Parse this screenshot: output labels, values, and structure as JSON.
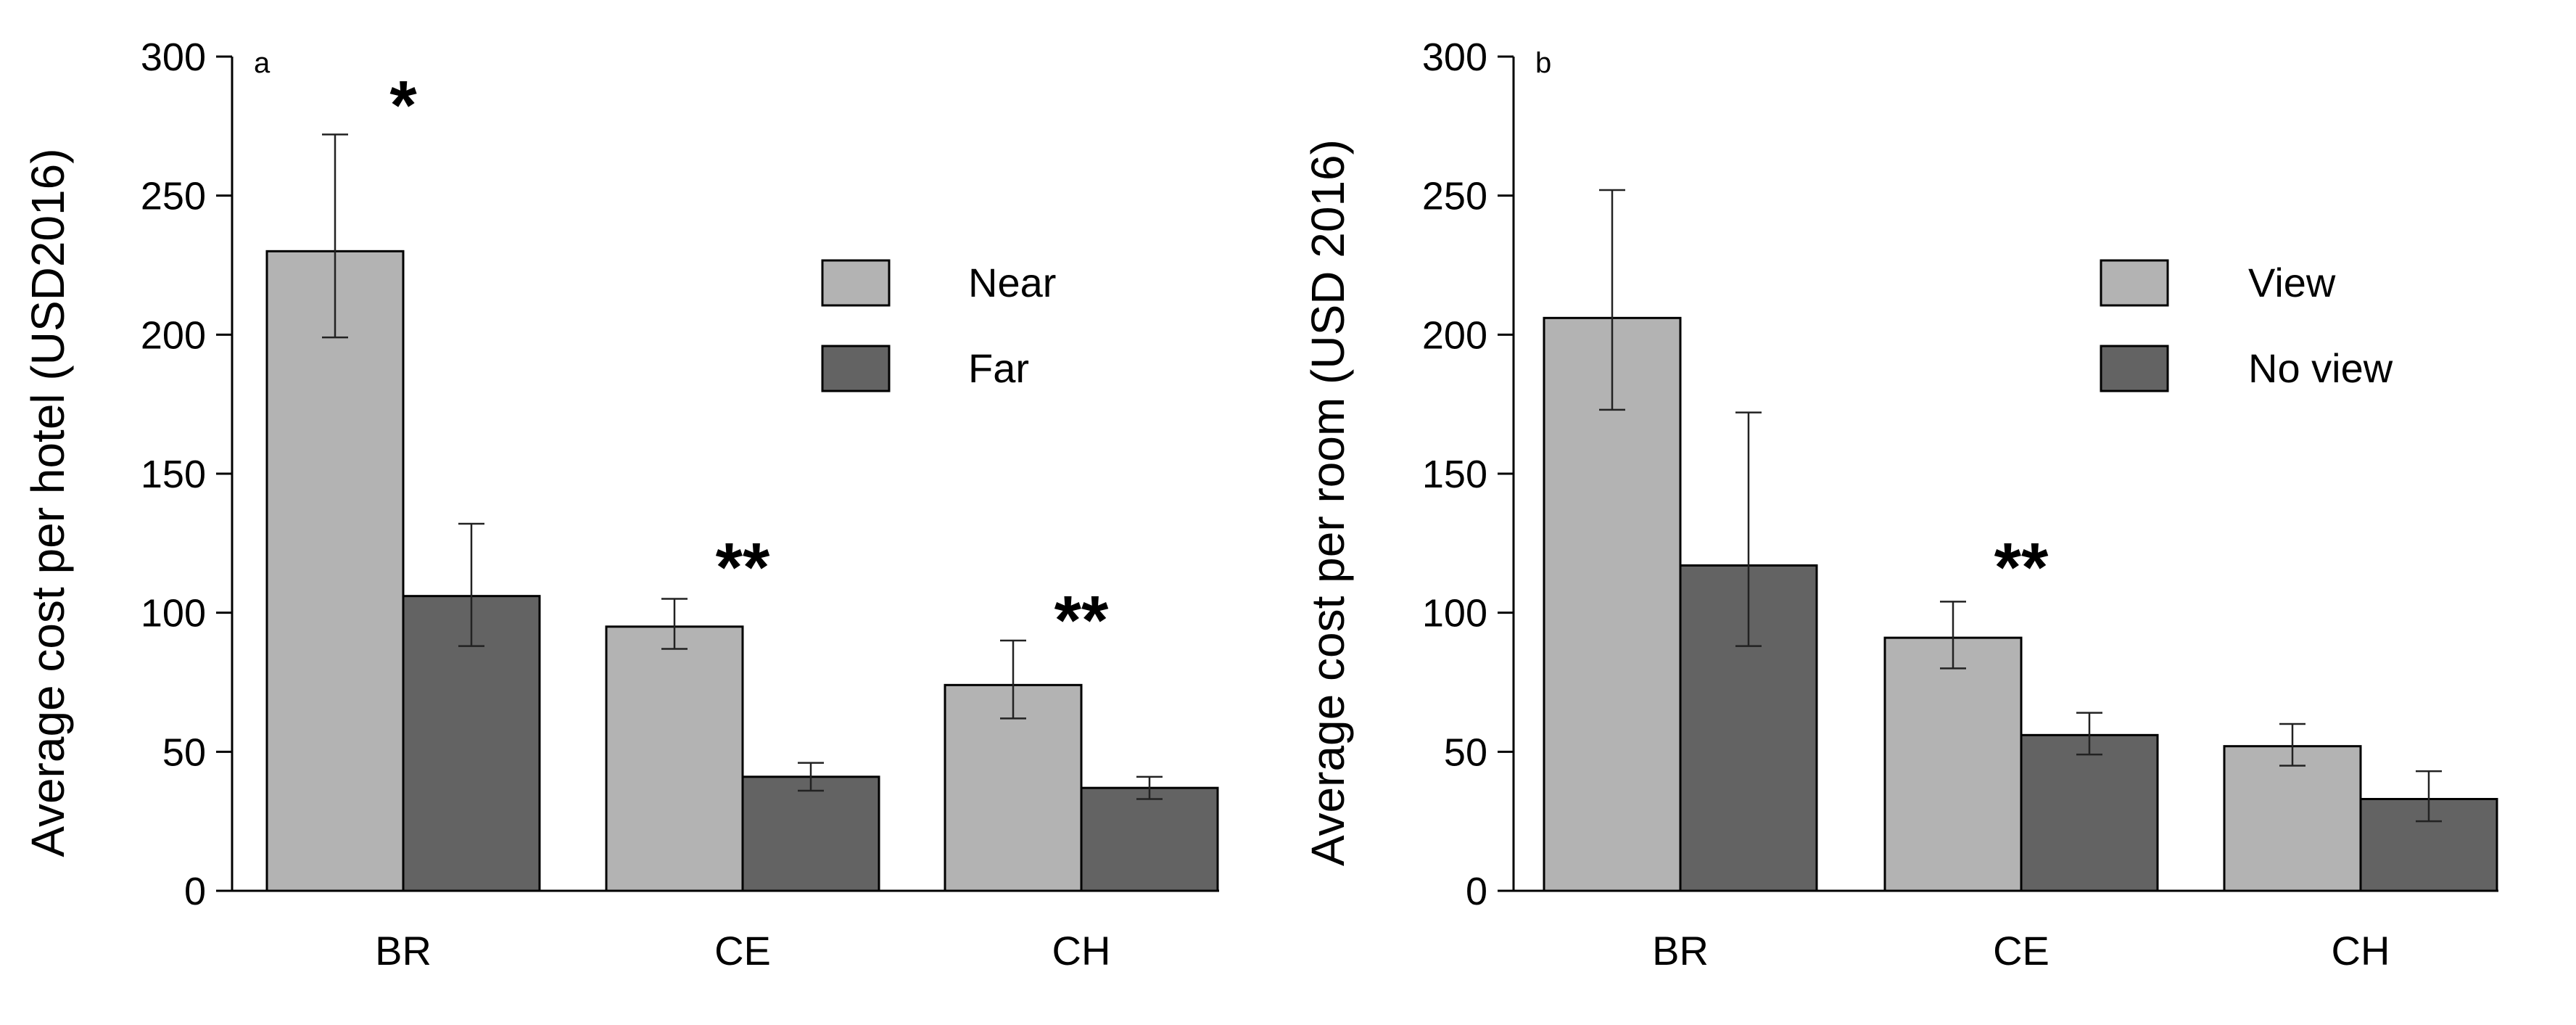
{
  "chart_data": [
    {
      "type": "bar",
      "panel_label": "a",
      "categories": [
        "BR",
        "CE",
        "CH"
      ],
      "series": [
        {
          "name": "Near",
          "color": "#b3b3b3",
          "values": [
            230,
            95,
            74
          ],
          "err_low": [
            199,
            87,
            62
          ],
          "err_high": [
            272,
            105,
            90
          ]
        },
        {
          "name": "Far",
          "color": "#636363",
          "values": [
            106,
            41,
            37
          ],
          "err_low": [
            88,
            36,
            33
          ],
          "err_high": [
            132,
            46,
            41
          ]
        }
      ],
      "significance": [
        "*",
        "**",
        "**"
      ],
      "xlabel": "",
      "ylabel": "Average cost per hotel (USD2016)",
      "ylim": [
        0,
        300
      ],
      "yticks": [
        0,
        50,
        100,
        150,
        200,
        250,
        300
      ],
      "legend_position": "top-right"
    },
    {
      "type": "bar",
      "panel_label": "b",
      "categories": [
        "BR",
        "CE",
        "CH"
      ],
      "series": [
        {
          "name": "View",
          "color": "#b3b3b3",
          "values": [
            206,
            91,
            52
          ],
          "err_low": [
            173,
            80,
            45
          ],
          "err_high": [
            252,
            104,
            60
          ]
        },
        {
          "name": "No view",
          "color": "#636363",
          "values": [
            117,
            56,
            33
          ],
          "err_low": [
            88,
            49,
            25
          ],
          "err_high": [
            172,
            64,
            43
          ]
        }
      ],
      "significance": [
        "",
        "**",
        ""
      ],
      "xlabel": "",
      "ylabel": "Average cost per room (USD 2016)",
      "ylim": [
        0,
        300
      ],
      "yticks": [
        0,
        50,
        100,
        150,
        200,
        250,
        300
      ],
      "legend_position": "top-right"
    }
  ]
}
